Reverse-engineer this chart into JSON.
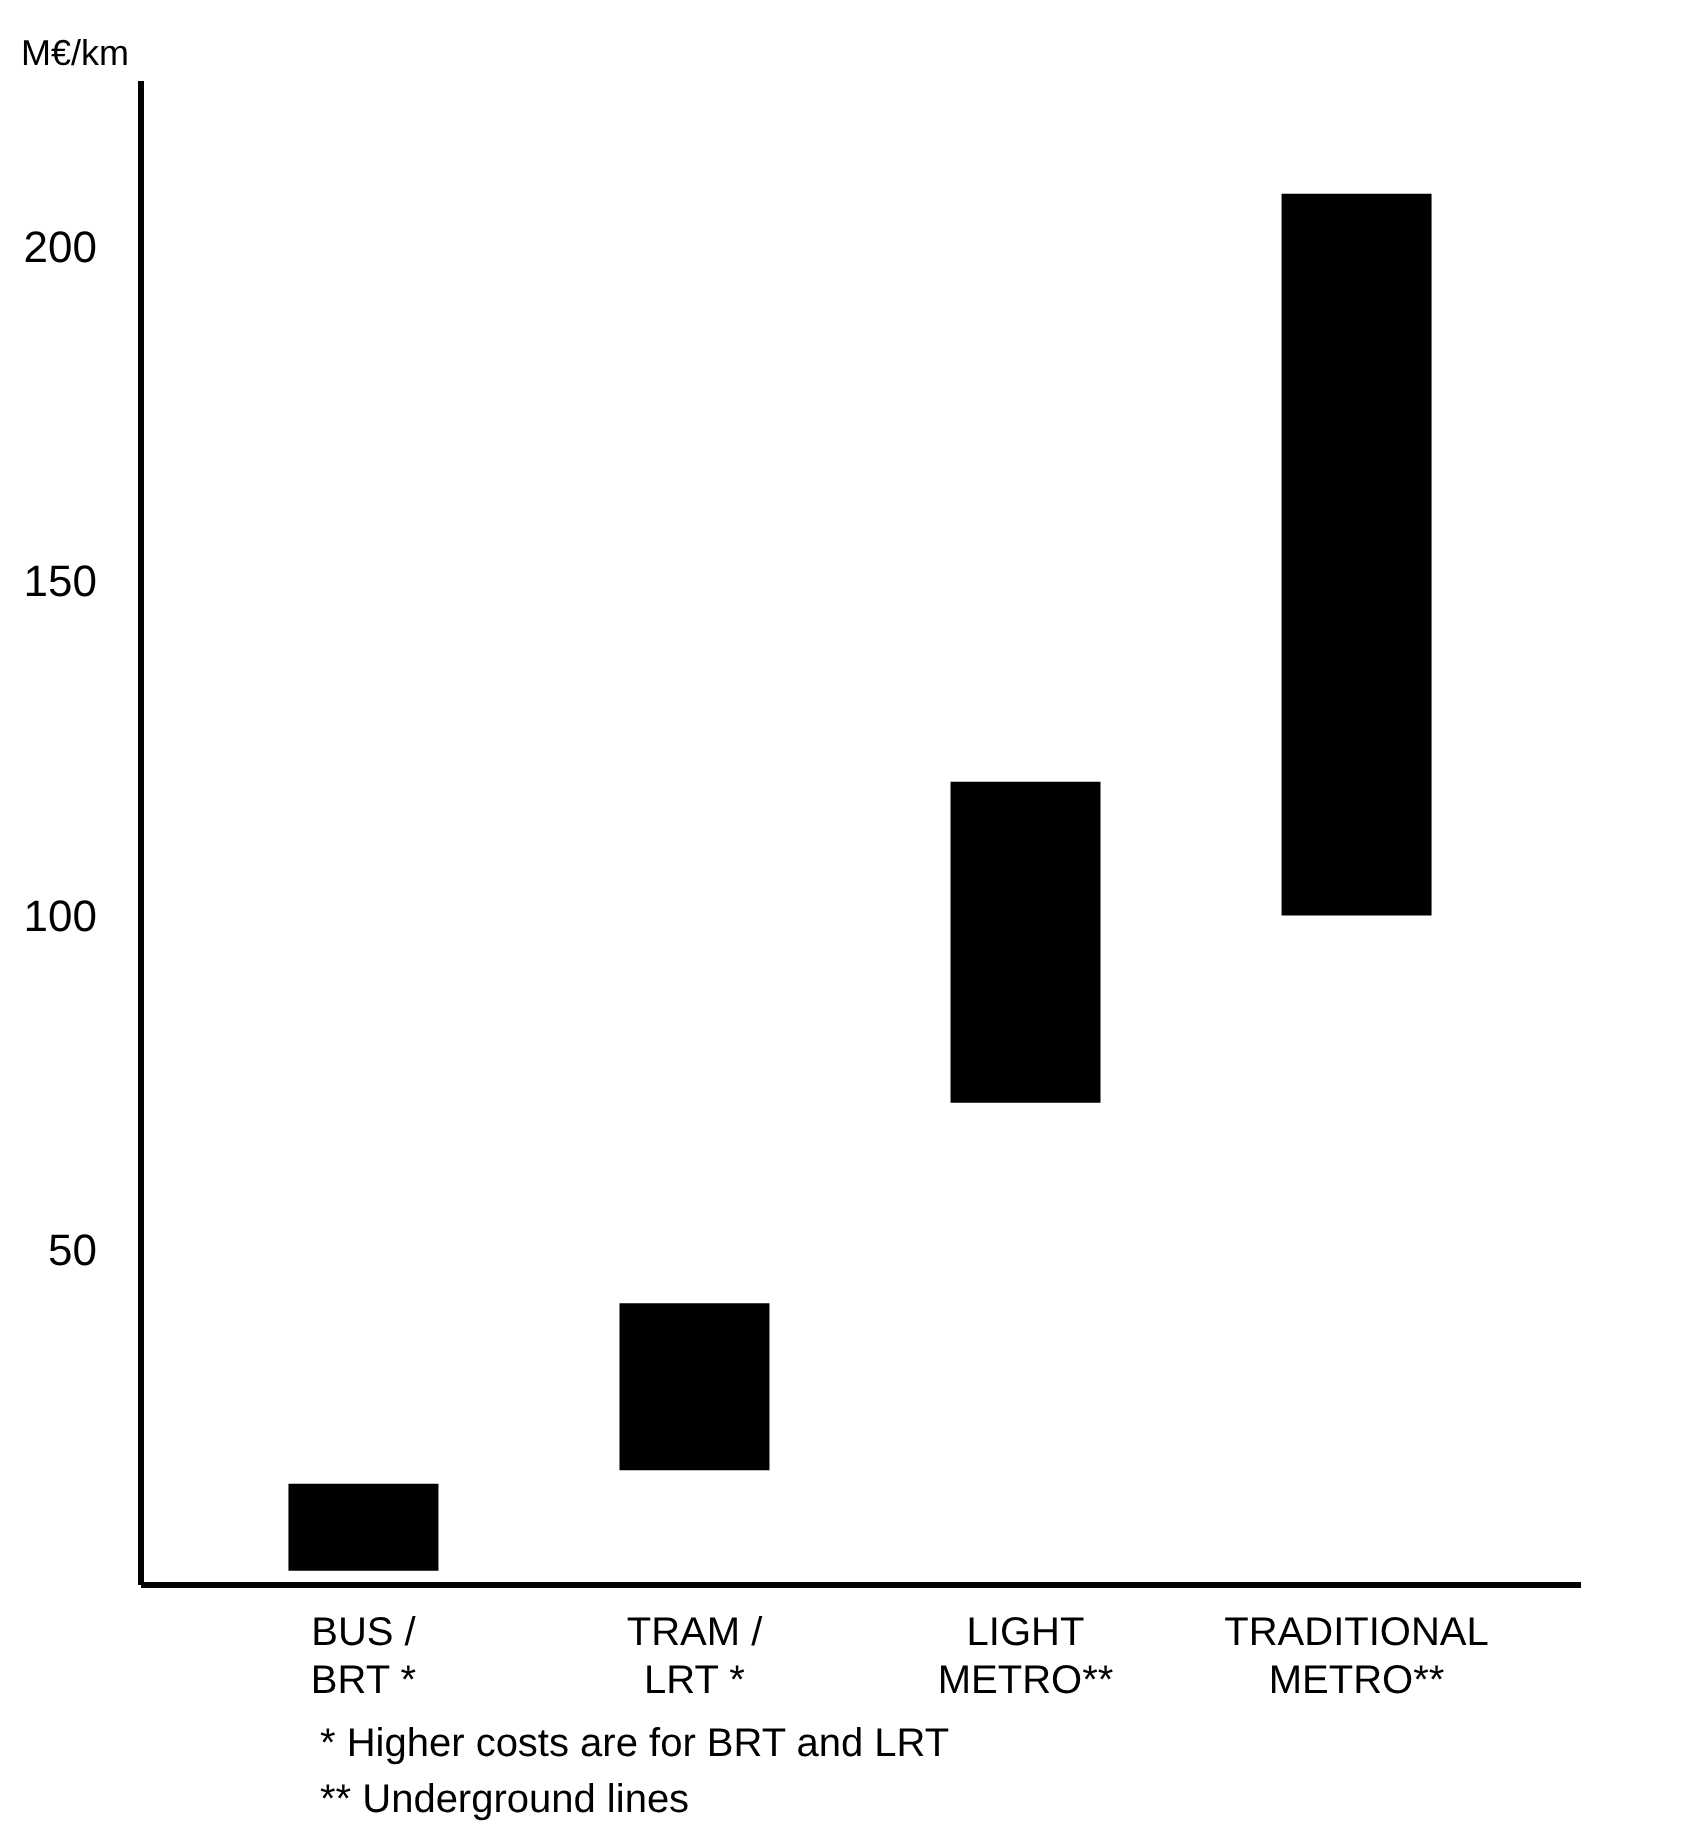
{
  "chart_data": {
    "type": "bar",
    "ylabel": "M€/km",
    "categories": [
      "BUS /\nBRT *",
      "TRAM /\nLRT *",
      "LIGHT\nMETRO**",
      "TRADITIONAL\nMETRO**"
    ],
    "base": [
      2,
      17,
      72,
      100
    ],
    "values": [
      13,
      25,
      48,
      108
    ],
    "color": "#000000",
    "ylim": [
      0,
      225
    ],
    "yticks": [
      50,
      100,
      150,
      200
    ],
    "annotations": [
      "* Higher costs are for BRT and LRT",
      "** Underground lines"
    ]
  }
}
